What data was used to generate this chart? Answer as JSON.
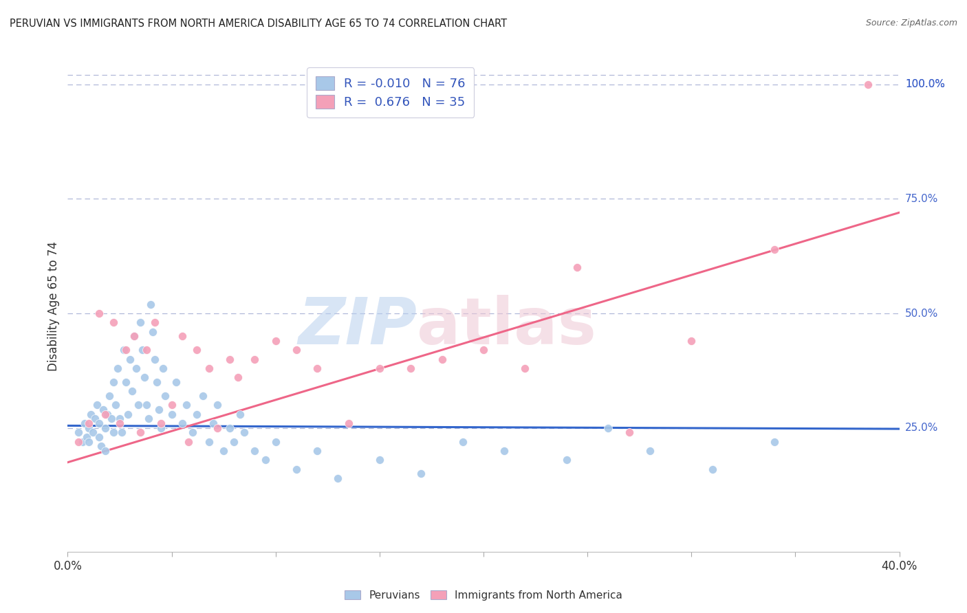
{
  "title": "PERUVIAN VS IMMIGRANTS FROM NORTH AMERICA DISABILITY AGE 65 TO 74 CORRELATION CHART",
  "source": "Source: ZipAtlas.com",
  "ylabel": "Disability Age 65 to 74",
  "xlim": [
    0.0,
    0.4
  ],
  "ylim": [
    -0.02,
    1.05
  ],
  "yticks_right": [
    0.25,
    0.5,
    0.75,
    1.0
  ],
  "ytick_labels_right": [
    "25.0%",
    "50.0%",
    "75.0%",
    "100.0%"
  ],
  "blue_R": -0.01,
  "blue_N": 76,
  "pink_R": 0.676,
  "pink_N": 35,
  "blue_color": "#a8c8e8",
  "pink_color": "#f4a0b8",
  "blue_line_color": "#3366cc",
  "pink_line_color": "#ee6688",
  "blue_line_y0": 0.255,
  "blue_line_y1": 0.248,
  "pink_line_y0": 0.175,
  "pink_line_y1": 0.72,
  "blue_scatter_x": [
    0.005,
    0.007,
    0.008,
    0.009,
    0.01,
    0.01,
    0.011,
    0.012,
    0.013,
    0.014,
    0.015,
    0.015,
    0.016,
    0.017,
    0.018,
    0.018,
    0.019,
    0.02,
    0.021,
    0.022,
    0.022,
    0.023,
    0.024,
    0.025,
    0.026,
    0.027,
    0.028,
    0.029,
    0.03,
    0.031,
    0.032,
    0.033,
    0.034,
    0.035,
    0.036,
    0.037,
    0.038,
    0.039,
    0.04,
    0.041,
    0.042,
    0.043,
    0.044,
    0.045,
    0.046,
    0.047,
    0.05,
    0.052,
    0.055,
    0.057,
    0.06,
    0.062,
    0.065,
    0.068,
    0.07,
    0.072,
    0.075,
    0.078,
    0.08,
    0.083,
    0.085,
    0.09,
    0.095,
    0.1,
    0.11,
    0.12,
    0.13,
    0.15,
    0.17,
    0.19,
    0.21,
    0.24,
    0.26,
    0.28,
    0.31,
    0.34
  ],
  "blue_scatter_y": [
    0.24,
    0.22,
    0.26,
    0.23,
    0.25,
    0.22,
    0.28,
    0.24,
    0.27,
    0.3,
    0.23,
    0.26,
    0.21,
    0.29,
    0.25,
    0.2,
    0.28,
    0.32,
    0.27,
    0.24,
    0.35,
    0.3,
    0.38,
    0.27,
    0.24,
    0.42,
    0.35,
    0.28,
    0.4,
    0.33,
    0.45,
    0.38,
    0.3,
    0.48,
    0.42,
    0.36,
    0.3,
    0.27,
    0.52,
    0.46,
    0.4,
    0.35,
    0.29,
    0.25,
    0.38,
    0.32,
    0.28,
    0.35,
    0.26,
    0.3,
    0.24,
    0.28,
    0.32,
    0.22,
    0.26,
    0.3,
    0.2,
    0.25,
    0.22,
    0.28,
    0.24,
    0.2,
    0.18,
    0.22,
    0.16,
    0.2,
    0.14,
    0.18,
    0.15,
    0.22,
    0.2,
    0.18,
    0.25,
    0.2,
    0.16,
    0.22
  ],
  "pink_scatter_x": [
    0.005,
    0.01,
    0.015,
    0.018,
    0.022,
    0.025,
    0.028,
    0.032,
    0.035,
    0.038,
    0.042,
    0.045,
    0.05,
    0.055,
    0.058,
    0.062,
    0.068,
    0.072,
    0.078,
    0.082,
    0.09,
    0.1,
    0.11,
    0.12,
    0.135,
    0.15,
    0.165,
    0.18,
    0.2,
    0.22,
    0.245,
    0.27,
    0.3,
    0.34,
    0.385
  ],
  "pink_scatter_y": [
    0.22,
    0.26,
    0.5,
    0.28,
    0.48,
    0.26,
    0.42,
    0.45,
    0.24,
    0.42,
    0.48,
    0.26,
    0.3,
    0.45,
    0.22,
    0.42,
    0.38,
    0.25,
    0.4,
    0.36,
    0.4,
    0.44,
    0.42,
    0.38,
    0.26,
    0.38,
    0.38,
    0.4,
    0.42,
    0.38,
    0.6,
    0.24,
    0.44,
    0.64,
    1.0
  ],
  "background_color": "#ffffff",
  "dashed_line_color": "#b0b8d8"
}
